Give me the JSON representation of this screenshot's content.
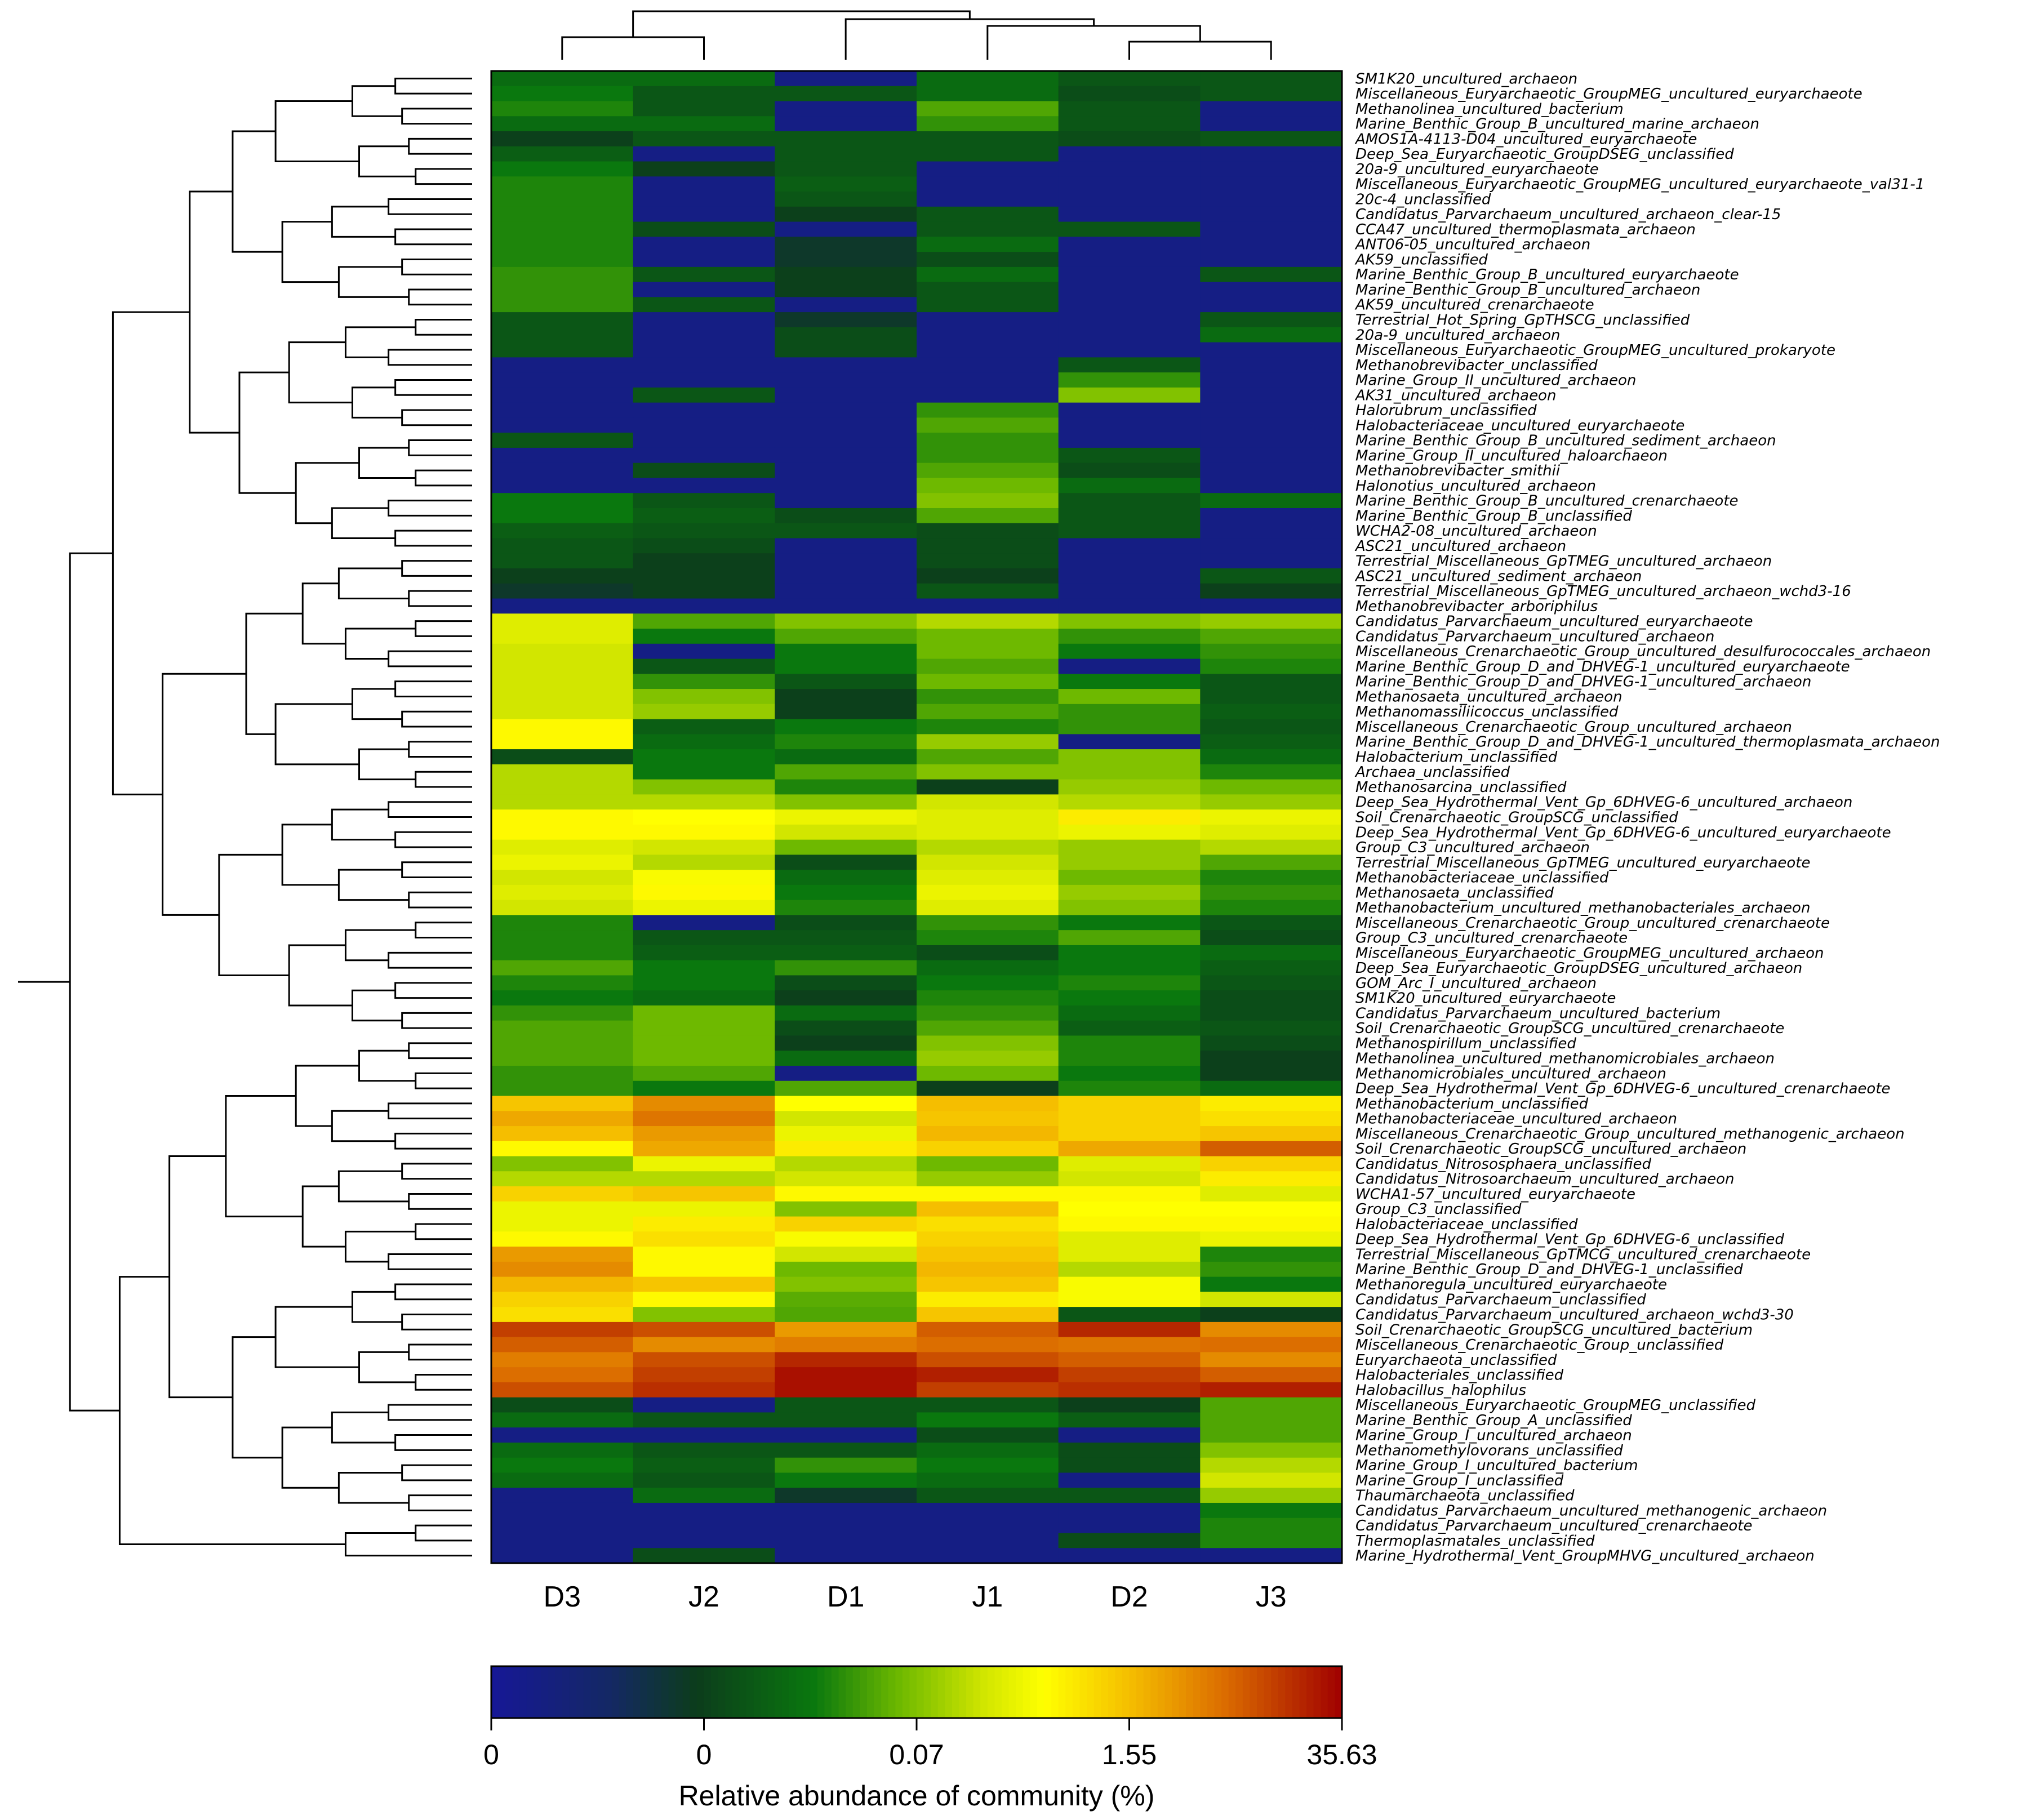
{
  "chart_data": {
    "type": "heatmap",
    "title": "",
    "columns": [
      "D3",
      "J2",
      "D1",
      "J1",
      "D2",
      "J3"
    ],
    "rows": [
      "SM1K20_uncultured_archaeon",
      "Miscellaneous_Euryarchaeotic_GroupMEG_uncultured_euryarchaeote",
      "Methanolinea_uncultured_bacterium",
      "Marine_Benthic_Group_B_uncultured_marine_archaeon",
      "AMOS1A-4113-D04_uncultured_euryarchaeote",
      "Deep_Sea_Euryarchaeotic_GroupDSEG_unclassified",
      "20a-9_uncultured_euryarchaeote",
      "Miscellaneous_Euryarchaeotic_GroupMEG_uncultured_euryarchaeote_val31-1",
      "20c-4_unclassified",
      "Candidatus_Parvarchaeum_uncultured_archaeon_clear-15",
      "CCA47_uncultured_thermoplasmata_archaeon",
      "ANT06-05_uncultured_archaeon",
      "AK59_unclassified",
      "Marine_Benthic_Group_B_uncultured_euryarchaeote",
      "Marine_Benthic_Group_B_uncultured_archaeon",
      "AK59_uncultured_crenarchaeote",
      "Terrestrial_Hot_Spring_GpTHSCG_unclassified",
      "20a-9_uncultured_archaeon",
      "Miscellaneous_Euryarchaeotic_GroupMEG_uncultured_prokaryote",
      "Methanobrevibacter_unclassified",
      "Marine_Group_II_uncultured_archaeon",
      "AK31_uncultured_archaeon",
      "Halorubrum_unclassified",
      "Halobacteriaceae_uncultured_euryarchaeote",
      "Marine_Benthic_Group_B_uncultured_sediment_archaeon",
      "Marine_Group_II_uncultured_haloarchaeon",
      "Methanobrevibacter_smithii",
      "Halonotius_uncultured_archaeon",
      "Marine_Benthic_Group_B_uncultured_crenarchaeote",
      "Marine_Benthic_Group_B_unclassified",
      "WCHA2-08_uncultured_archaeon",
      "ASC21_uncultured_archaeon",
      "Terrestrial_Miscellaneous_GpTMEG_uncultured_archaeon",
      "ASC21_uncultured_sediment_archaeon",
      "Terrestrial_Miscellaneous_GpTMEG_uncultured_archaeon_wchd3-16",
      "Methanobrevibacter_arboriphilus",
      "Candidatus_Parvarchaeum_uncultured_euryarchaeote",
      "Candidatus_Parvarchaeum_uncultured_archaeon",
      "Miscellaneous_Crenarchaeotic_Group_uncultured_desulfurococcales_archaeon",
      "Marine_Benthic_Group_D_and_DHVEG-1_uncultured_euryarchaeote",
      "Marine_Benthic_Group_D_and_DHVEG-1_uncultured_archaeon",
      "Methanosaeta_uncultured_archaeon",
      "Methanomassiliicoccus_unclassified",
      "Miscellaneous_Crenarchaeotic_Group_uncultured_archaeon",
      "Marine_Benthic_Group_D_and_DHVEG-1_uncultured_thermoplasmata_archaeon",
      "Halobacterium_unclassified",
      "Archaea_unclassified",
      "Methanosarcina_unclassified",
      "Deep_Sea_Hydrothermal_Vent_Gp_6DHVEG-6_uncultured_archaeon",
      "Soil_Crenarchaeotic_GroupSCG_unclassified",
      "Deep_Sea_Hydrothermal_Vent_Gp_6DHVEG-6_uncultured_euryarchaeote",
      "Group_C3_uncultured_archaeon",
      "Terrestrial_Miscellaneous_GpTMEG_uncultured_euryarchaeote",
      "Methanobacteriaceae_unclassified",
      "Methanosaeta_unclassified",
      "Methanobacterium_uncultured_methanobacteriales_archaeon",
      "Miscellaneous_Crenarchaeotic_Group_uncultured_crenarchaeote",
      "Group_C3_uncultured_crenarchaeote",
      "Miscellaneous_Euryarchaeotic_GroupMEG_uncultured_archaeon",
      "Deep_Sea_Euryarchaeotic_GroupDSEG_uncultured_archaeon",
      "GOM_Arc_I_uncultured_archaeon",
      "SM1K20_uncultured_euryarchaeote",
      "Candidatus_Parvarchaeum_uncultured_bacterium",
      "Soil_Crenarchaeotic_GroupSCG_uncultured_crenarchaeote",
      "Methanospirillum_unclassified",
      "Methanolinea_uncultured_methanomicrobiales_archaeon",
      "Methanomicrobiales_uncultured_archaeon",
      "Deep_Sea_Hydrothermal_Vent_Gp_6DHVEG-6_uncultured_crenarchaeote",
      "Methanobacterium_unclassified",
      "Methanobacteriaceae_uncultured_archaeon",
      "Miscellaneous_Crenarchaeotic_Group_uncultured_methanogenic_archaeon",
      "Soil_Crenarchaeotic_GroupSCG_uncultured_archaeon",
      "Candidatus_Nitrososphaera_unclassified",
      "Candidatus_Nitrosoarchaeum_uncultured_archaeon",
      "WCHA1-57_uncultured_euryarchaeote",
      "Group_C3_unclassified",
      "Halobacteriaceae_unclassified",
      "Deep_Sea_Hydrothermal_Vent_Gp_6DHVEG-6_unclassified",
      "Terrestrial_Miscellaneous_GpTMCG_uncultured_crenarchaeote",
      "Marine_Benthic_Group_D_and_DHVEG-1_unclassified",
      "Methanoregula_uncultured_euryarchaeote",
      "Candidatus_Parvarchaeum_unclassified",
      "Candidatus_Parvarchaeum_uncultured_archaeon_wchd3-30",
      "Soil_Crenarchaeotic_GroupSCG_uncultured_bacterium",
      "Miscellaneous_Crenarchaeotic_Group_unclassified",
      "Euryarchaeota_unclassified",
      "Halobacteriales_unclassified",
      "Halobacillus_halophilus",
      "Miscellaneous_Euryarchaeotic_GroupMEG_unclassified",
      "Marine_Benthic_Group_A_unclassified",
      "Marine_Group_I_uncultured_archaeon",
      "Methanomethylovorans_unclassified",
      "Marine_Group_I_uncultured_bacterium",
      "Marine_Group_I_unclassified",
      "Thaumarchaeota_unclassified",
      "Candidatus_Parvarchaeum_uncultured_methanogenic_archaeon",
      "Candidatus_Parvarchaeum_uncultured_crenarchaeote",
      "Thermoplasmatales_unclassified",
      "Marine_Hydrothermal_Vent_GroupMHVG_uncultured_archaeon"
    ],
    "color_levels_note": "Cell values are color-scale positions 0-100 (0 = 0%, 100 = 35.63%).",
    "values": [
      [
        35,
        35,
        5,
        35,
        30,
        30
      ],
      [
        38,
        30,
        30,
        35,
        28,
        30
      ],
      [
        40,
        30,
        5,
        45,
        30,
        5
      ],
      [
        35,
        35,
        5,
        42,
        30,
        5
      ],
      [
        25,
        30,
        30,
        30,
        28,
        30
      ],
      [
        32,
        5,
        30,
        30,
        5,
        5
      ],
      [
        38,
        25,
        30,
        5,
        5,
        5
      ],
      [
        40,
        5,
        32,
        5,
        5,
        5
      ],
      [
        40,
        5,
        30,
        5,
        5,
        5
      ],
      [
        40,
        5,
        25,
        30,
        5,
        5
      ],
      [
        40,
        28,
        5,
        30,
        30,
        5
      ],
      [
        40,
        5,
        22,
        35,
        5,
        5
      ],
      [
        40,
        5,
        22,
        28,
        5,
        5
      ],
      [
        42,
        30,
        25,
        35,
        5,
        30
      ],
      [
        42,
        5,
        25,
        30,
        5,
        5
      ],
      [
        42,
        30,
        5,
        30,
        5,
        5
      ],
      [
        30,
        5,
        22,
        5,
        5,
        30
      ],
      [
        30,
        5,
        28,
        5,
        5,
        35
      ],
      [
        30,
        5,
        28,
        5,
        5,
        5
      ],
      [
        5,
        5,
        5,
        5,
        30,
        5
      ],
      [
        5,
        5,
        5,
        5,
        42,
        5
      ],
      [
        5,
        30,
        5,
        5,
        50,
        5
      ],
      [
        5,
        5,
        5,
        42,
        5,
        5
      ],
      [
        5,
        5,
        5,
        45,
        5,
        5
      ],
      [
        30,
        5,
        5,
        42,
        5,
        5
      ],
      [
        5,
        5,
        5,
        42,
        30,
        5
      ],
      [
        5,
        28,
        5,
        45,
        28,
        5
      ],
      [
        5,
        5,
        5,
        48,
        35,
        5
      ],
      [
        38,
        30,
        5,
        50,
        30,
        35
      ],
      [
        38,
        32,
        28,
        45,
        30,
        5
      ],
      [
        32,
        30,
        30,
        28,
        30,
        5
      ],
      [
        30,
        28,
        5,
        28,
        5,
        5
      ],
      [
        30,
        25,
        5,
        28,
        5,
        5
      ],
      [
        25,
        25,
        5,
        25,
        5,
        30
      ],
      [
        22,
        25,
        5,
        30,
        5,
        25
      ],
      [
        5,
        5,
        5,
        5,
        5,
        5
      ],
      [
        60,
        45,
        50,
        55,
        50,
        52
      ],
      [
        60,
        38,
        45,
        48,
        42,
        45
      ],
      [
        58,
        5,
        38,
        48,
        38,
        42
      ],
      [
        58,
        30,
        38,
        45,
        5,
        40
      ],
      [
        58,
        42,
        30,
        48,
        38,
        30
      ],
      [
        58,
        50,
        25,
        42,
        48,
        30
      ],
      [
        58,
        52,
        25,
        45,
        42,
        32
      ],
      [
        66,
        32,
        38,
        40,
        42,
        30
      ],
      [
        66,
        35,
        40,
        52,
        5,
        32
      ],
      [
        28,
        38,
        35,
        45,
        50,
        35
      ],
      [
        55,
        38,
        45,
        50,
        50,
        40
      ],
      [
        55,
        50,
        40,
        25,
        52,
        48
      ],
      [
        55,
        55,
        50,
        58,
        55,
        52
      ],
      [
        66,
        65,
        62,
        60,
        68,
        62
      ],
      [
        66,
        66,
        58,
        60,
        62,
        60
      ],
      [
        60,
        58,
        48,
        55,
        52,
        55
      ],
      [
        62,
        55,
        28,
        58,
        52,
        45
      ],
      [
        58,
        64,
        35,
        60,
        48,
        40
      ],
      [
        60,
        66,
        38,
        62,
        52,
        42
      ],
      [
        58,
        62,
        40,
        60,
        50,
        40
      ],
      [
        40,
        5,
        28,
        42,
        38,
        30
      ],
      [
        40,
        30,
        30,
        40,
        45,
        28
      ],
      [
        40,
        32,
        32,
        28,
        38,
        35
      ],
      [
        45,
        38,
        42,
        35,
        38,
        32
      ],
      [
        40,
        38,
        28,
        38,
        40,
        30
      ],
      [
        38,
        35,
        25,
        40,
        38,
        28
      ],
      [
        42,
        48,
        35,
        42,
        35,
        28
      ],
      [
        45,
        48,
        28,
        45,
        32,
        30
      ],
      [
        45,
        48,
        25,
        50,
        40,
        28
      ],
      [
        45,
        48,
        35,
        52,
        40,
        25
      ],
      [
        42,
        45,
        5,
        48,
        38,
        25
      ],
      [
        42,
        38,
        45,
        25,
        40,
        35
      ],
      [
        74,
        82,
        65,
        75,
        72,
        68
      ],
      [
        78,
        85,
        58,
        74,
        72,
        70
      ],
      [
        75,
        80,
        62,
        76,
        72,
        74
      ],
      [
        66,
        78,
        68,
        72,
        78,
        88
      ],
      [
        50,
        62,
        55,
        48,
        60,
        72
      ],
      [
        55,
        55,
        58,
        52,
        58,
        68
      ],
      [
        72,
        74,
        66,
        66,
        66,
        60
      ],
      [
        62,
        62,
        50,
        75,
        65,
        65
      ],
      [
        62,
        68,
        72,
        70,
        66,
        66
      ],
      [
        66,
        70,
        64,
        72,
        60,
        62
      ],
      [
        80,
        66,
        58,
        74,
        60,
        40
      ],
      [
        82,
        66,
        48,
        76,
        55,
        42
      ],
      [
        76,
        74,
        50,
        74,
        64,
        38
      ],
      [
        72,
        66,
        46,
        68,
        64,
        58
      ],
      [
        70,
        50,
        45,
        74,
        30,
        25
      ],
      [
        92,
        90,
        80,
        88,
        95,
        82
      ],
      [
        88,
        82,
        84,
        86,
        85,
        86
      ],
      [
        84,
        90,
        95,
        90,
        88,
        82
      ],
      [
        86,
        92,
        98,
        96,
        92,
        88
      ],
      [
        90,
        94,
        98,
        92,
        94,
        96
      ],
      [
        28,
        5,
        30,
        30,
        25,
        45
      ],
      [
        35,
        30,
        30,
        38,
        32,
        45
      ],
      [
        5,
        5,
        5,
        28,
        5,
        45
      ],
      [
        35,
        30,
        30,
        35,
        28,
        50
      ],
      [
        38,
        32,
        42,
        38,
        28,
        55
      ],
      [
        35,
        30,
        38,
        35,
        5,
        58
      ],
      [
        5,
        35,
        22,
        30,
        30,
        52
      ],
      [
        5,
        5,
        5,
        5,
        5,
        38
      ],
      [
        5,
        5,
        5,
        5,
        5,
        40
      ],
      [
        5,
        5,
        5,
        5,
        28,
        40
      ],
      [
        5,
        28,
        5,
        5,
        5,
        5
      ]
    ],
    "legend": {
      "label": "Relative abundance of community (%)",
      "tick_labels": [
        "0",
        "0",
        "0.07",
        "1.55",
        "35.63"
      ],
      "colors": [
        "#1a1a96",
        "#0e3a1e",
        "#0e7d0e",
        "#ffff00",
        "#f0a000",
        "#a00000"
      ]
    },
    "column_dendrogram": "((D3,J2),(D1,(J1,(D2,J3))))",
    "row_dendrogram": "hierarchical clustering tree drawn at left of rows"
  }
}
